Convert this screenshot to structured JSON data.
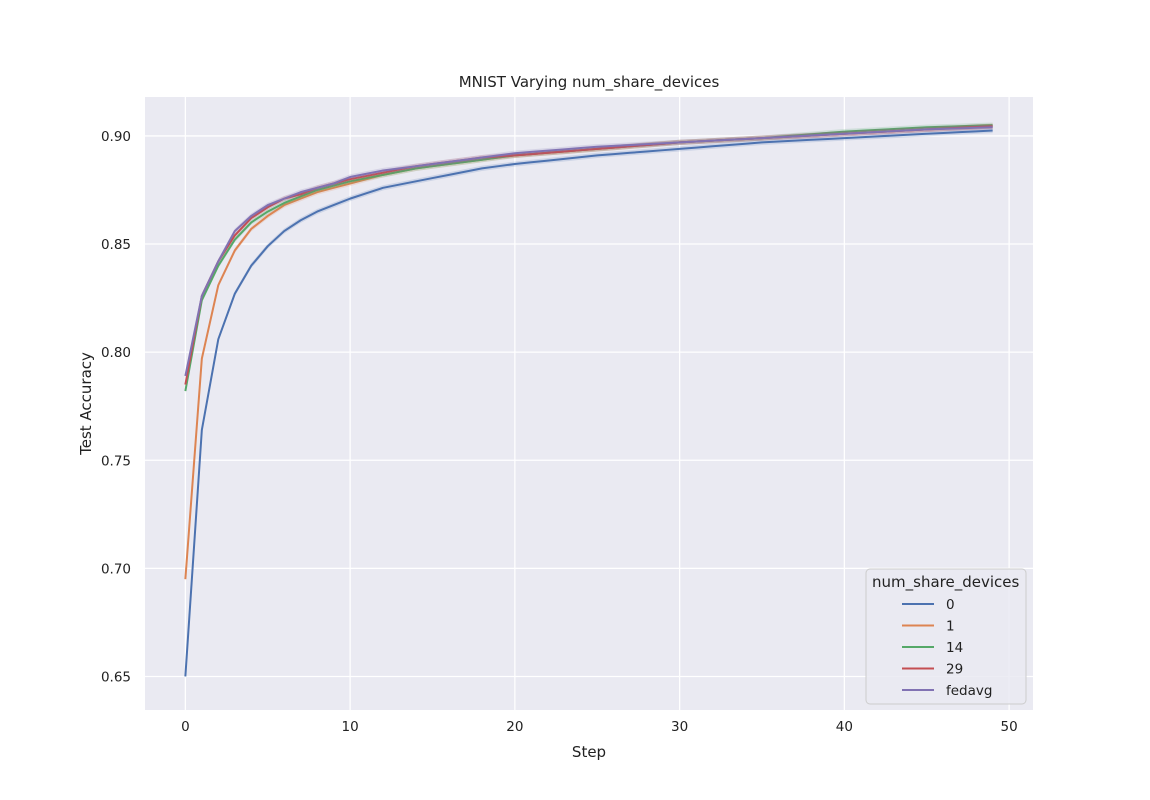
{
  "chart_data": {
    "type": "line",
    "title": "MNIST Varying num_share_devices",
    "xlabel": "Step",
    "ylabel": "Test Accuracy",
    "xlim": [
      -2.45,
      51.45
    ],
    "ylim": [
      0.6345,
      0.918
    ],
    "xticks": [
      0,
      10,
      20,
      30,
      40,
      50
    ],
    "yticks": [
      0.65,
      0.7,
      0.75,
      0.8,
      0.85,
      0.9
    ],
    "xtick_labels": [
      "0",
      "10",
      "20",
      "30",
      "40",
      "50"
    ],
    "ytick_labels": [
      "0.65",
      "0.70",
      "0.75",
      "0.80",
      "0.85",
      "0.90"
    ],
    "grid": true,
    "background": "#eaeaf2",
    "legend": {
      "title": "num_share_devices",
      "position": "lower right"
    },
    "series": [
      {
        "name": "0",
        "color": "#4c72b0",
        "keypoints": [
          [
            0,
            0.65
          ],
          [
            1,
            0.764
          ],
          [
            2,
            0.806
          ],
          [
            3,
            0.827
          ],
          [
            4,
            0.84
          ],
          [
            5,
            0.849
          ],
          [
            6,
            0.856
          ],
          [
            7,
            0.861
          ],
          [
            8,
            0.865
          ],
          [
            9,
            0.868
          ],
          [
            10,
            0.871
          ],
          [
            12,
            0.876
          ],
          [
            14,
            0.879
          ],
          [
            16,
            0.882
          ],
          [
            18,
            0.885
          ],
          [
            20,
            0.887
          ],
          [
            25,
            0.891
          ],
          [
            30,
            0.894
          ],
          [
            35,
            0.897
          ],
          [
            40,
            0.899
          ],
          [
            45,
            0.901
          ],
          [
            49,
            0.9025
          ]
        ]
      },
      {
        "name": "1",
        "color": "#dd8452",
        "keypoints": [
          [
            0,
            0.695
          ],
          [
            1,
            0.797
          ],
          [
            2,
            0.831
          ],
          [
            3,
            0.847
          ],
          [
            4,
            0.857
          ],
          [
            5,
            0.863
          ],
          [
            6,
            0.868
          ],
          [
            7,
            0.871
          ],
          [
            8,
            0.874
          ],
          [
            9,
            0.876
          ],
          [
            10,
            0.878
          ],
          [
            12,
            0.882
          ],
          [
            14,
            0.885
          ],
          [
            16,
            0.887
          ],
          [
            18,
            0.889
          ],
          [
            20,
            0.891
          ],
          [
            25,
            0.894
          ],
          [
            30,
            0.897
          ],
          [
            35,
            0.899
          ],
          [
            40,
            0.901
          ],
          [
            45,
            0.903
          ],
          [
            49,
            0.9045
          ]
        ]
      },
      {
        "name": "14",
        "color": "#55a868",
        "keypoints": [
          [
            0,
            0.782
          ],
          [
            1,
            0.824
          ],
          [
            2,
            0.84
          ],
          [
            3,
            0.852
          ],
          [
            4,
            0.86
          ],
          [
            5,
            0.865
          ],
          [
            6,
            0.869
          ],
          [
            7,
            0.872
          ],
          [
            8,
            0.875
          ],
          [
            9,
            0.877
          ],
          [
            10,
            0.879
          ],
          [
            12,
            0.882
          ],
          [
            14,
            0.885
          ],
          [
            16,
            0.887
          ],
          [
            18,
            0.889
          ],
          [
            20,
            0.891
          ],
          [
            25,
            0.894
          ],
          [
            30,
            0.897
          ],
          [
            35,
            0.899
          ],
          [
            40,
            0.902
          ],
          [
            45,
            0.904
          ],
          [
            49,
            0.905
          ]
        ]
      },
      {
        "name": "29",
        "color": "#c44e52",
        "keypoints": [
          [
            0,
            0.785
          ],
          [
            1,
            0.826
          ],
          [
            2,
            0.842
          ],
          [
            3,
            0.854
          ],
          [
            4,
            0.862
          ],
          [
            5,
            0.867
          ],
          [
            6,
            0.871
          ],
          [
            7,
            0.873
          ],
          [
            8,
            0.876
          ],
          [
            9,
            0.878
          ],
          [
            10,
            0.88
          ],
          [
            12,
            0.883
          ],
          [
            14,
            0.886
          ],
          [
            16,
            0.888
          ],
          [
            18,
            0.89
          ],
          [
            20,
            0.891
          ],
          [
            25,
            0.894
          ],
          [
            30,
            0.897
          ],
          [
            35,
            0.899
          ],
          [
            40,
            0.901
          ],
          [
            45,
            0.903
          ],
          [
            49,
            0.9045
          ]
        ]
      },
      {
        "name": "fedavg",
        "color": "#8172b3",
        "keypoints": [
          [
            0,
            0.789
          ],
          [
            1,
            0.826
          ],
          [
            2,
            0.842
          ],
          [
            3,
            0.856
          ],
          [
            4,
            0.863
          ],
          [
            5,
            0.868
          ],
          [
            6,
            0.871
          ],
          [
            7,
            0.874
          ],
          [
            8,
            0.876
          ],
          [
            9,
            0.878
          ],
          [
            10,
            0.881
          ],
          [
            12,
            0.884
          ],
          [
            14,
            0.886
          ],
          [
            16,
            0.888
          ],
          [
            18,
            0.89
          ],
          [
            20,
            0.892
          ],
          [
            25,
            0.895
          ],
          [
            30,
            0.897
          ],
          [
            35,
            0.899
          ],
          [
            40,
            0.901
          ],
          [
            45,
            0.903
          ],
          [
            49,
            0.904
          ]
        ]
      }
    ]
  }
}
